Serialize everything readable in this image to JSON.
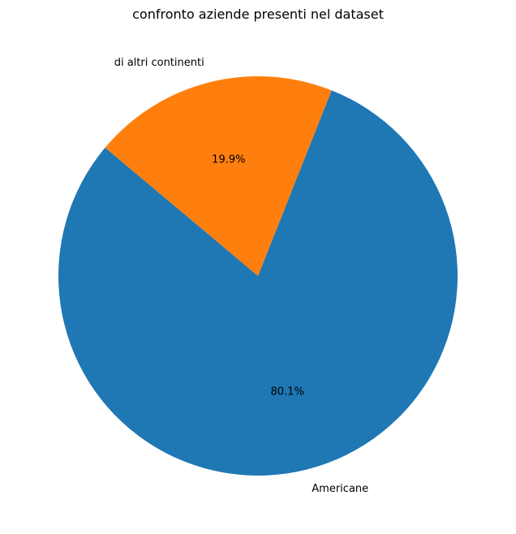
{
  "chart_data": {
    "type": "pie",
    "title": "confronto aziende presenti nel dataset",
    "slices": [
      {
        "label": "Americane",
        "value": 80.1,
        "pct_label": "80.1%",
        "color": "#1f77b4"
      },
      {
        "label": "di altri continenti",
        "value": 19.9,
        "pct_label": "19.9%",
        "color": "#ff7f0e"
      }
    ],
    "start_angle_deg": 140,
    "legend": "none"
  }
}
